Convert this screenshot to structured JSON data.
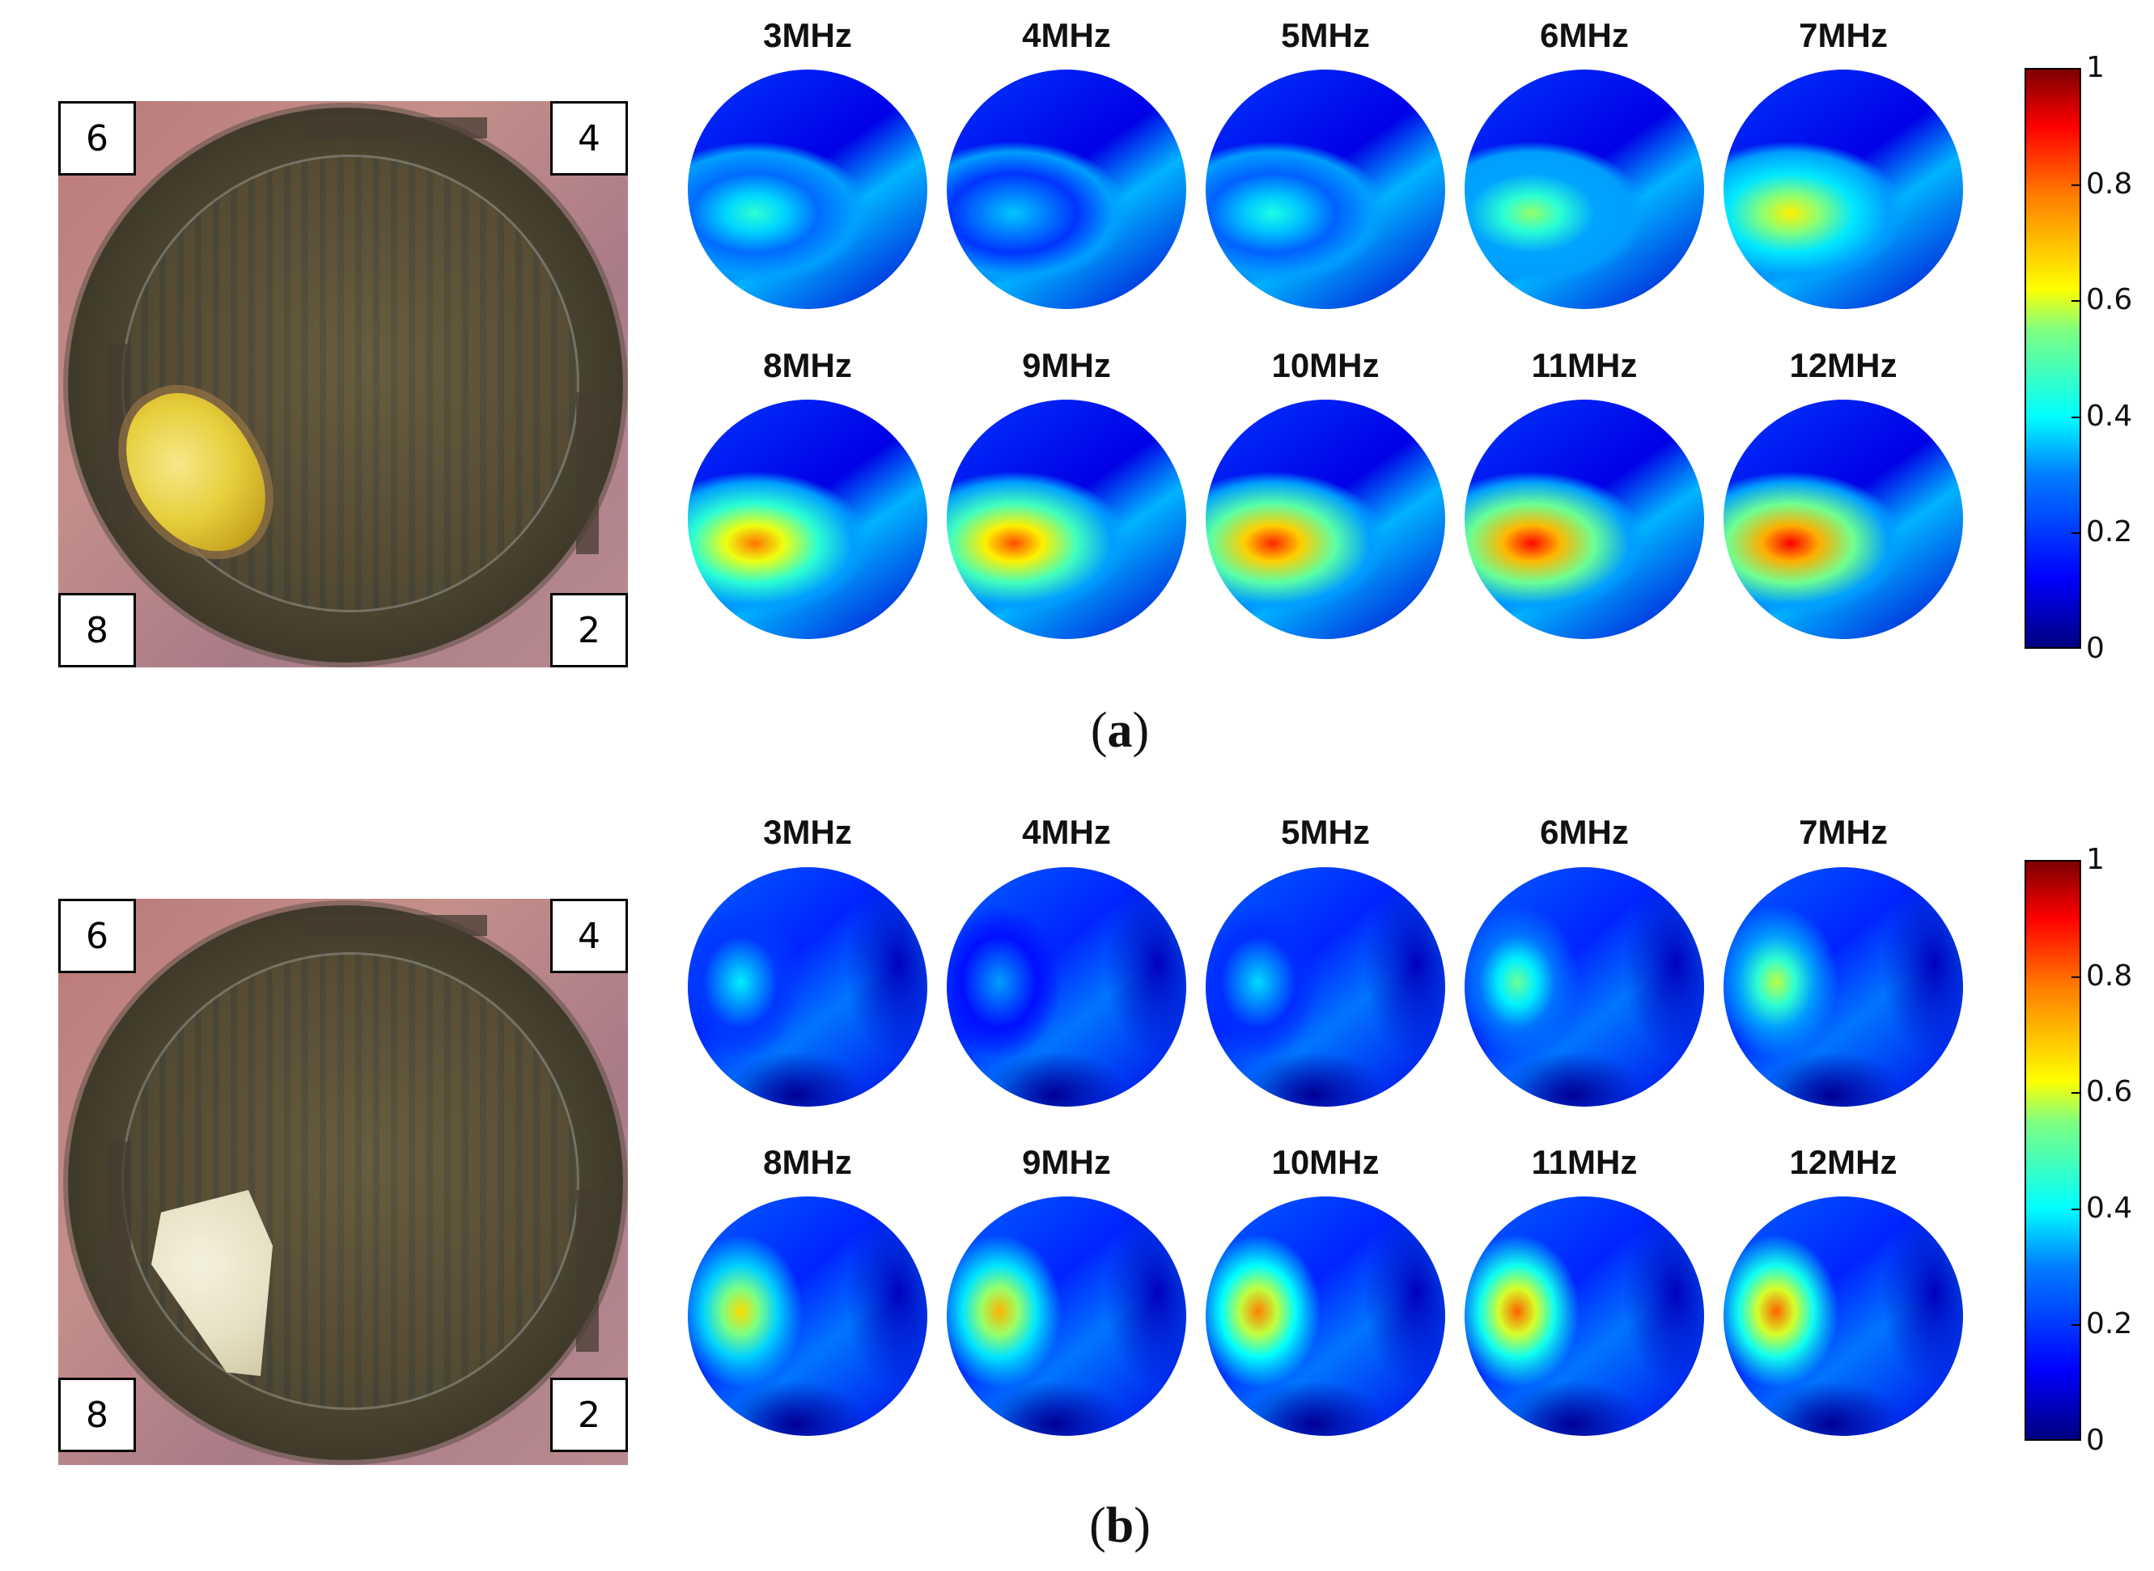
{
  "panels": [
    {
      "caption_letter": "a",
      "frequencies": [
        "3MHz",
        "4MHz",
        "5MHz",
        "6MHz",
        "7MHz",
        "8MHz",
        "9MHz",
        "10MHz",
        "11MHz",
        "12MHz"
      ],
      "intensity": [
        0.42,
        0.32,
        0.4,
        0.52,
        0.64,
        0.76,
        0.8,
        0.84,
        0.87,
        0.88
      ],
      "electrodes": {
        "top_left": "6",
        "top_right": "4",
        "bottom_left": "8",
        "bottom_right": "2"
      },
      "colorbar": {
        "ticks": [
          "1",
          "0.8",
          "0.6",
          "0.4",
          "0.2",
          "0"
        ]
      },
      "object_color": "#e7cf3c"
    },
    {
      "caption_letter": "b",
      "frequencies": [
        "3MHz",
        "4MHz",
        "5MHz",
        "6MHz",
        "7MHz",
        "8MHz",
        "9MHz",
        "10MHz",
        "11MHz",
        "12MHz"
      ],
      "intensity": [
        0.36,
        0.28,
        0.34,
        0.48,
        0.56,
        0.66,
        0.7,
        0.75,
        0.78,
        0.78
      ],
      "electrodes": {
        "top_left": "6",
        "top_right": "4",
        "bottom_left": "8",
        "bottom_right": "2"
      },
      "colorbar": {
        "ticks": [
          "1",
          "0.8",
          "0.6",
          "0.4",
          "0.2",
          "0"
        ]
      },
      "object_color": "#e6e1c4"
    }
  ],
  "colormap": "jet"
}
